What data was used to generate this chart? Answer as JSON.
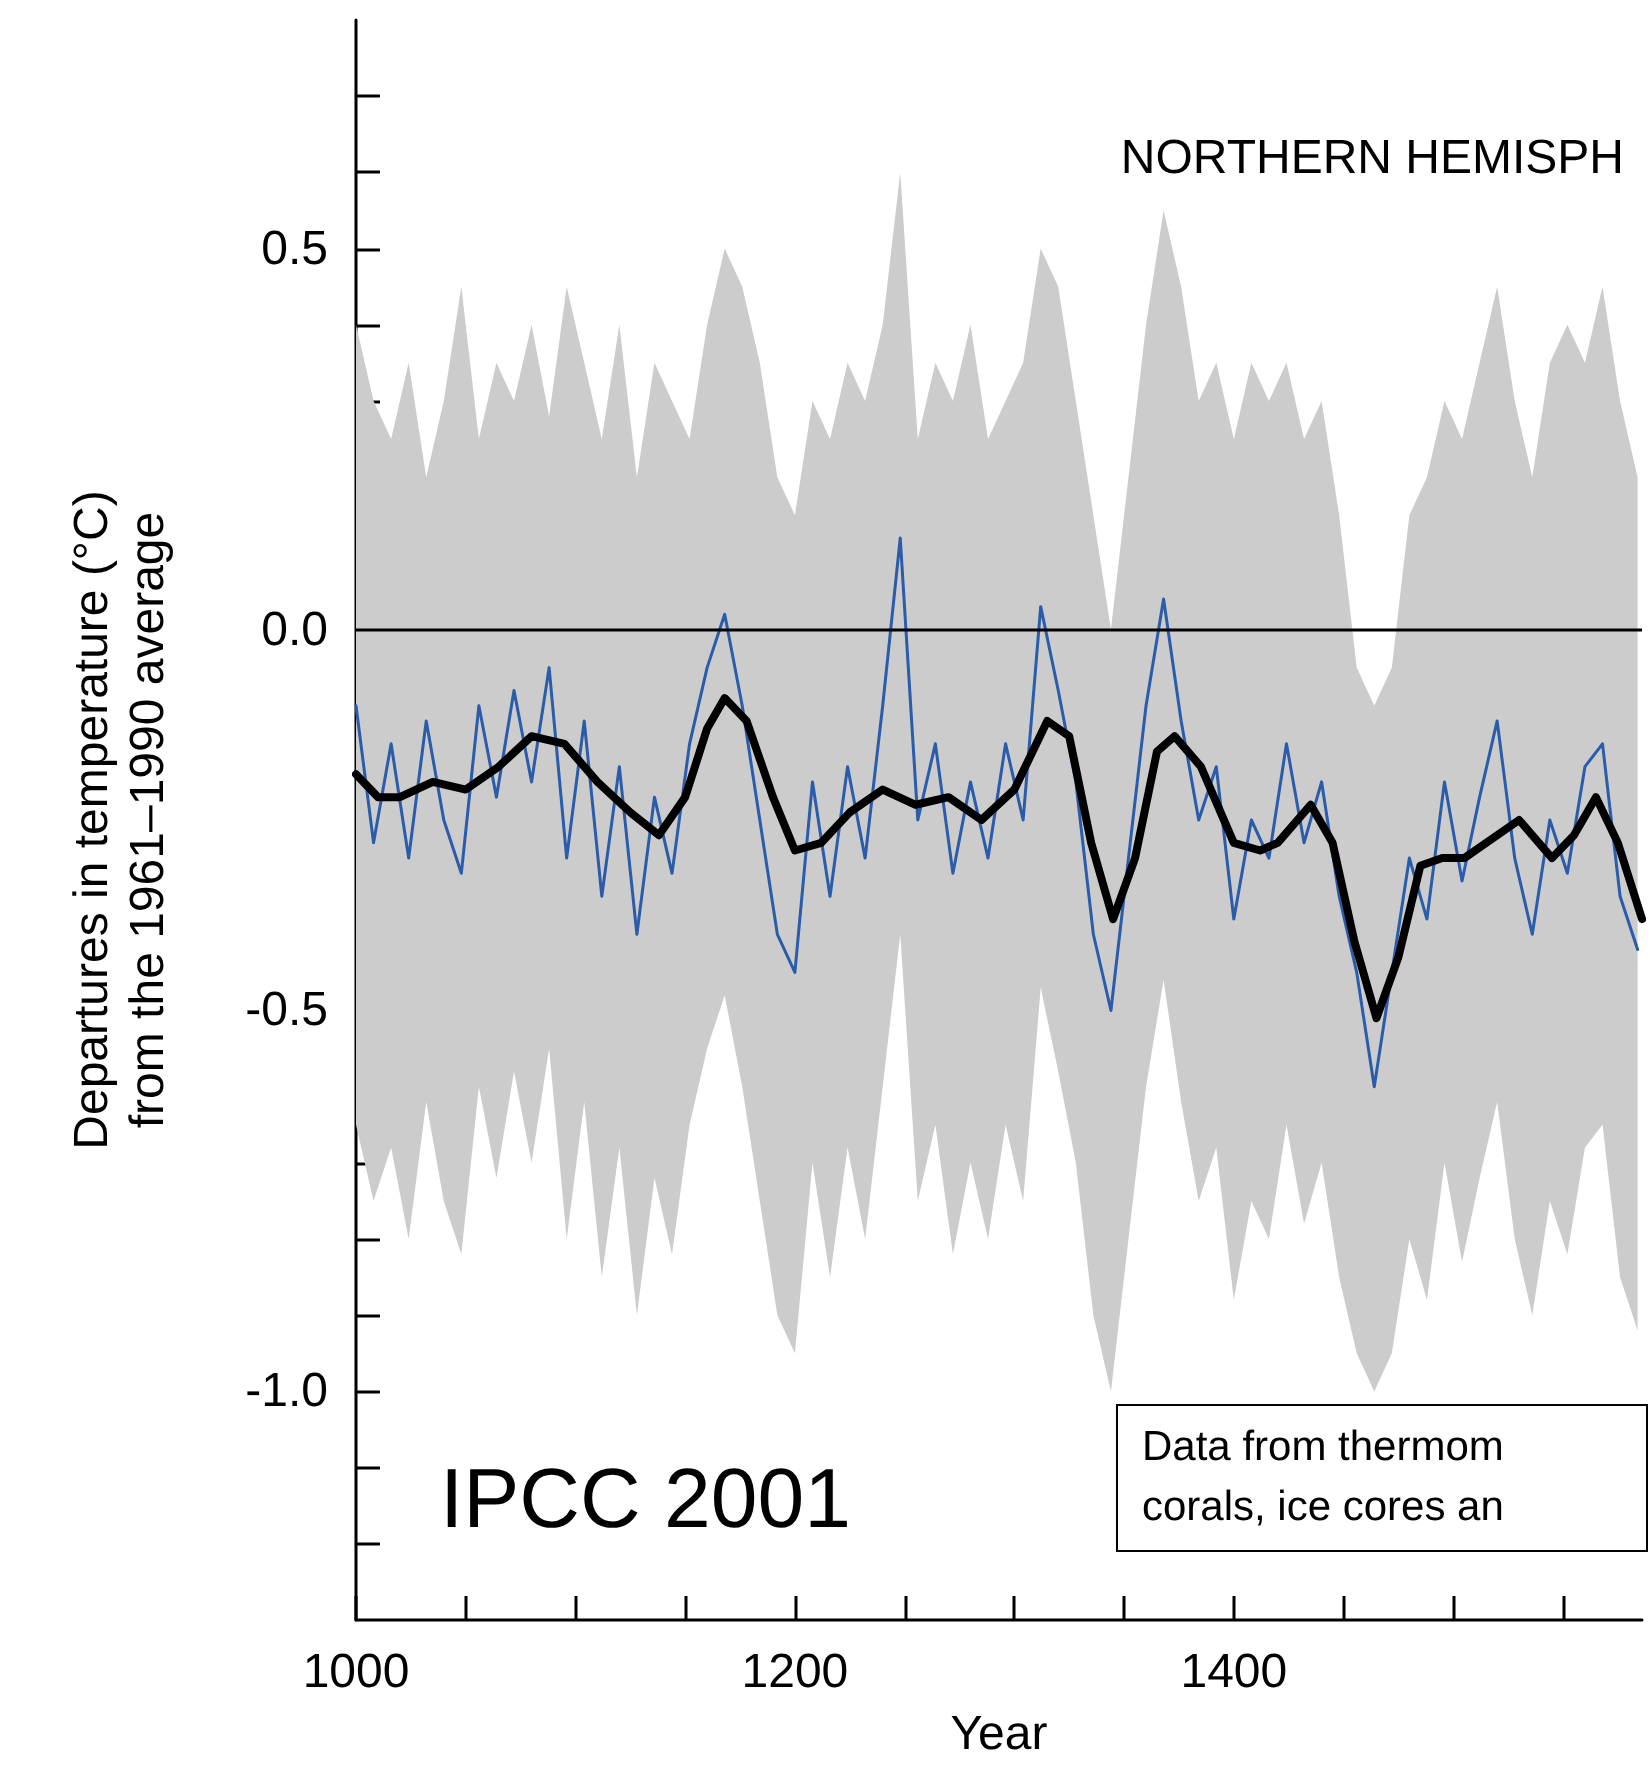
{
  "chart_data": {
    "type": "line",
    "title": "NORTHERN HEMISPH",
    "xlabel": "Year",
    "ylabel": "Departures in temperature (°C)\nfrom the 1961–1990 average",
    "annotations": [
      "IPCC 2001",
      "Data from thermom\ncorals, ice cores an"
    ],
    "xlim": [
      1000,
      1586
    ],
    "ylim": [
      -1.3,
      0.8
    ],
    "xticks": [
      1000,
      {
        "value": 1050,
        "label": null
      },
      {
        "value": 1100,
        "label": null
      },
      {
        "value": 1150,
        "label": null
      },
      1200,
      {
        "value": 1250,
        "label": null
      },
      {
        "value": 1300,
        "label": null
      },
      {
        "value": 1350,
        "label": null
      },
      1400,
      {
        "value": 1450,
        "label": null
      },
      {
        "value": 1500,
        "label": null
      },
      {
        "value": 1550,
        "label": null
      }
    ],
    "yticks": [
      {
        "value": -1.2,
        "label": null
      },
      {
        "value": -1.1,
        "label": null
      },
      {
        "value": -1.0,
        "label": "-1.0"
      },
      {
        "value": -0.9,
        "label": null
      },
      {
        "value": -0.8,
        "label": null
      },
      {
        "value": -0.7,
        "label": null
      },
      {
        "value": -0.6,
        "label": null
      },
      -0.5,
      {
        "value": -0.4,
        "label": null
      },
      {
        "value": -0.3,
        "label": null
      },
      {
        "value": -0.2,
        "label": null
      },
      {
        "value": -0.1,
        "label": null
      },
      {
        "value": 0,
        "label": "0.0"
      },
      {
        "value": 0.1,
        "label": null
      },
      {
        "value": 0.2,
        "label": null
      },
      {
        "value": 0.3,
        "label": null
      },
      {
        "value": 0.4,
        "label": null
      },
      0.5,
      {
        "value": 0.6,
        "label": null
      },
      {
        "value": 0.7,
        "label": null
      }
    ],
    "ref_lines": [
      {
        "axis": "y",
        "value": 0,
        "color": "#000000"
      }
    ],
    "grid": false,
    "marker": "none",
    "line_style": "solid",
    "series": [
      {
        "color": "#2a5caa",
        "x": [
          1000,
          1008,
          1016,
          1024,
          1032,
          1040,
          1048,
          1056,
          1064,
          1072,
          1080,
          1088,
          1096,
          1104,
          1112,
          1120,
          1128,
          1136,
          1144,
          1152,
          1160,
          1168,
          1176,
          1184,
          1192,
          1200,
          1208,
          1216,
          1224,
          1232,
          1240,
          1248,
          1256,
          1264,
          1272,
          1280,
          1288,
          1296,
          1304,
          1312,
          1320,
          1328,
          1336,
          1344,
          1352,
          1360,
          1368,
          1376,
          1384,
          1392,
          1400,
          1408,
          1416,
          1424,
          1432,
          1440,
          1448,
          1456,
          1464,
          1472,
          1480,
          1488,
          1496,
          1504,
          1512,
          1520,
          1528,
          1536,
          1544,
          1552,
          1560,
          1568,
          1576,
          1584
        ],
        "values": [
          -0.1,
          -0.28,
          -0.15,
          -0.3,
          -0.12,
          -0.25,
          -0.32,
          -0.1,
          -0.22,
          -0.08,
          -0.2,
          -0.05,
          -0.3,
          -0.12,
          -0.35,
          -0.18,
          -0.4,
          -0.22,
          -0.32,
          -0.15,
          -0.05,
          0.02,
          -0.1,
          -0.25,
          -0.4,
          -0.45,
          -0.2,
          -0.35,
          -0.18,
          -0.3,
          -0.1,
          0.12,
          -0.25,
          -0.15,
          -0.32,
          -0.2,
          -0.3,
          -0.15,
          -0.25,
          0.03,
          -0.08,
          -0.2,
          -0.4,
          -0.5,
          -0.3,
          -0.1,
          0.04,
          -0.12,
          -0.25,
          -0.18,
          -0.38,
          -0.25,
          -0.3,
          -0.15,
          -0.28,
          -0.2,
          -0.35,
          -0.45,
          -0.6,
          -0.45,
          -0.3,
          -0.38,
          -0.2,
          -0.33,
          -0.22,
          -0.12,
          -0.3,
          -0.4,
          -0.25,
          -0.32,
          -0.18,
          -0.15,
          -0.35,
          -0.42
        ],
        "upper": [
          0.4,
          0.3,
          0.25,
          0.35,
          0.2,
          0.3,
          0.45,
          0.25,
          0.35,
          0.3,
          0.4,
          0.28,
          0.45,
          0.35,
          0.25,
          0.4,
          0.2,
          0.35,
          0.3,
          0.25,
          0.4,
          0.5,
          0.45,
          0.35,
          0.2,
          0.15,
          0.3,
          0.25,
          0.35,
          0.3,
          0.4,
          0.6,
          0.25,
          0.35,
          0.3,
          0.4,
          0.25,
          0.3,
          0.35,
          0.5,
          0.45,
          0.3,
          0.15,
          0.0,
          0.2,
          0.4,
          0.55,
          0.45,
          0.3,
          0.35,
          0.25,
          0.35,
          0.3,
          0.35,
          0.25,
          0.3,
          0.15,
          -0.05,
          -0.1,
          -0.05,
          0.15,
          0.2,
          0.3,
          0.25,
          0.35,
          0.45,
          0.3,
          0.2,
          0.35,
          0.4,
          0.35,
          0.45,
          0.3,
          0.2
        ],
        "lower": [
          -0.65,
          -0.75,
          -0.68,
          -0.8,
          -0.62,
          -0.75,
          -0.82,
          -0.6,
          -0.72,
          -0.58,
          -0.7,
          -0.55,
          -0.8,
          -0.62,
          -0.85,
          -0.68,
          -0.9,
          -0.72,
          -0.82,
          -0.65,
          -0.55,
          -0.48,
          -0.6,
          -0.75,
          -0.9,
          -0.95,
          -0.7,
          -0.85,
          -0.68,
          -0.8,
          -0.6,
          -0.4,
          -0.75,
          -0.65,
          -0.82,
          -0.7,
          -0.8,
          -0.65,
          -0.75,
          -0.47,
          -0.58,
          -0.7,
          -0.9,
          -1.0,
          -0.8,
          -0.6,
          -0.46,
          -0.62,
          -0.75,
          -0.68,
          -0.88,
          -0.75,
          -0.8,
          -0.65,
          -0.78,
          -0.7,
          -0.85,
          -0.95,
          -1.0,
          -0.95,
          -0.8,
          -0.88,
          -0.7,
          -0.83,
          -0.72,
          -0.62,
          -0.8,
          -0.9,
          -0.75,
          -0.82,
          -0.68,
          -0.65,
          -0.85,
          -0.92
        ]
      },
      {
        "color": "#000000",
        "x": [
          1000,
          1010,
          1020,
          1035,
          1050,
          1065,
          1080,
          1095,
          1110,
          1125,
          1138,
          1150,
          1160,
          1168,
          1178,
          1190,
          1200,
          1212,
          1225,
          1240,
          1255,
          1270,
          1285,
          1300,
          1315,
          1325,
          1335,
          1345,
          1355,
          1365,
          1373,
          1385,
          1400,
          1412,
          1420,
          1435,
          1445,
          1455,
          1465,
          1475,
          1485,
          1495,
          1505,
          1520,
          1530,
          1545,
          1555,
          1565,
          1575,
          1586
        ],
        "values": [
          -0.19,
          -0.22,
          -0.22,
          -0.2,
          -0.21,
          -0.18,
          -0.14,
          -0.15,
          -0.2,
          -0.24,
          -0.27,
          -0.22,
          -0.13,
          -0.09,
          -0.12,
          -0.22,
          -0.29,
          -0.28,
          -0.24,
          -0.21,
          -0.23,
          -0.22,
          -0.25,
          -0.21,
          -0.12,
          -0.14,
          -0.28,
          -0.38,
          -0.3,
          -0.16,
          -0.14,
          -0.18,
          -0.28,
          -0.29,
          -0.28,
          -0.23,
          -0.28,
          -0.41,
          -0.51,
          -0.43,
          -0.31,
          -0.3,
          -0.3,
          -0.27,
          -0.25,
          -0.3,
          -0.27,
          -0.22,
          -0.28,
          -0.38
        ]
      }
    ]
  }
}
